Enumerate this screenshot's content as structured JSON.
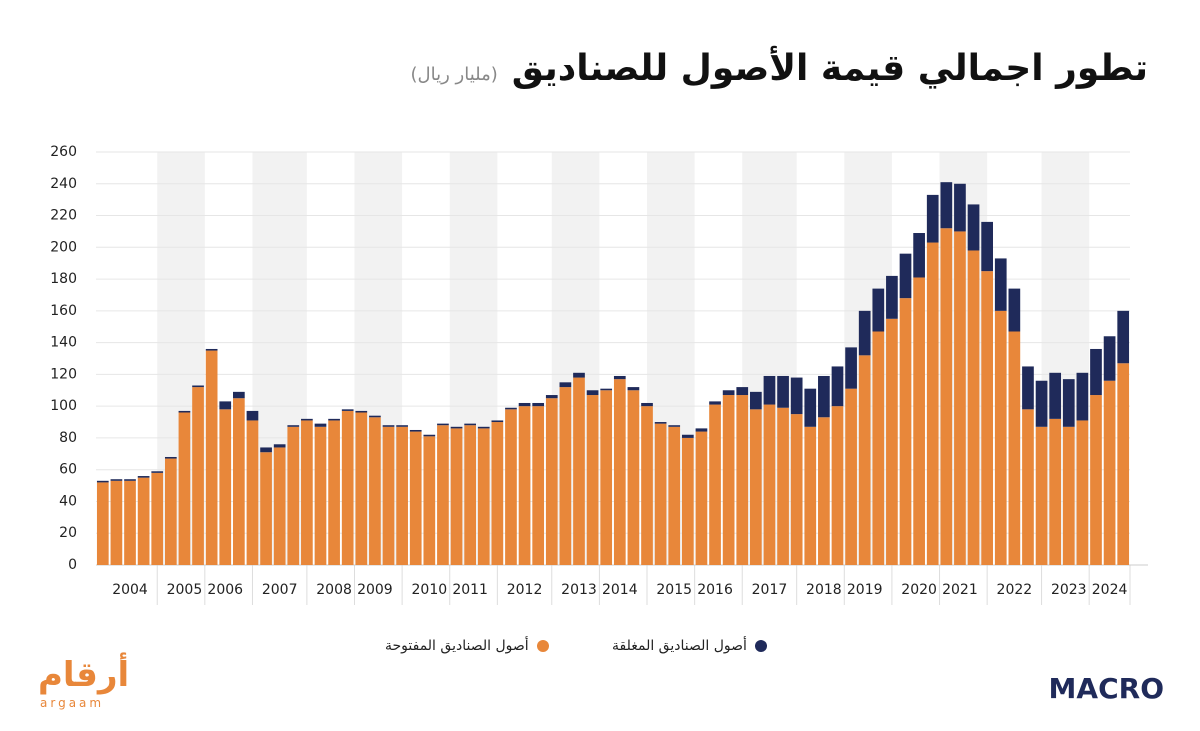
{
  "chart_data": {
    "type": "stacked_bar",
    "title": "تطور اجمالي قيمة الأصول للصناديق",
    "subtitle": "(مليار ريال)",
    "categories": [
      null,
      null,
      "2004",
      null,
      null,
      null,
      "2005",
      null,
      null,
      "2006",
      null,
      null,
      null,
      "2007",
      null,
      null,
      null,
      "2008",
      null,
      null,
      "2009",
      null,
      null,
      null,
      "2010",
      null,
      null,
      "2011",
      null,
      null,
      null,
      "2012",
      null,
      null,
      null,
      "2013",
      null,
      null,
      "2014",
      null,
      null,
      null,
      "2015",
      null,
      null,
      "2016",
      null,
      null,
      null,
      "2017",
      null,
      null,
      null,
      "2018",
      null,
      null,
      "2019",
      null,
      null,
      null,
      "2020",
      null,
      null,
      "2021",
      null,
      null,
      null,
      "2022",
      null,
      null,
      null,
      "2023",
      null,
      null,
      "2024",
      null
    ],
    "series": [
      {
        "name": "أصول الصناديق المفتوحة",
        "color": "#e8873a",
        "values": [
          52,
          53,
          53,
          55,
          58,
          67,
          96,
          112,
          135,
          98,
          105,
          91,
          71,
          74,
          87,
          91,
          87,
          91,
          97,
          96,
          93,
          87,
          87,
          84,
          81,
          88,
          86,
          88,
          86,
          90,
          98,
          100,
          100,
          105,
          112,
          118,
          107,
          110,
          117,
          110,
          100,
          89,
          87,
          80,
          84,
          101,
          107,
          107,
          98,
          101,
          99,
          95,
          87,
          93,
          100,
          111,
          132,
          147,
          155,
          168,
          181,
          203,
          212,
          210,
          198,
          185,
          160,
          147,
          98,
          87,
          92,
          87,
          91,
          107,
          116,
          127
        ]
      },
      {
        "name": "أصول الصناديق المغلقة",
        "color": "#1f2a5a",
        "values": [
          1,
          1,
          1,
          1,
          1,
          1,
          1,
          1,
          1,
          5,
          4,
          6,
          3,
          2,
          1,
          1,
          2,
          1,
          1,
          1,
          1,
          1,
          1,
          1,
          1,
          1,
          1,
          1,
          1,
          1,
          1,
          2,
          2,
          2,
          3,
          3,
          3,
          1,
          2,
          2,
          2,
          1,
          1,
          2,
          2,
          2,
          3,
          5,
          11,
          18,
          20,
          23,
          24,
          26,
          25,
          26,
          28,
          27,
          27,
          28,
          28,
          30,
          29,
          30,
          29,
          31,
          33,
          27,
          27,
          29,
          29,
          30,
          30,
          29,
          28,
          33
        ]
      }
    ],
    "ylim": [
      0,
      260
    ],
    "yticks": [
      0,
      20,
      40,
      60,
      80,
      100,
      120,
      140,
      160,
      180,
      200,
      220,
      240,
      260
    ],
    "grid": true,
    "logos": {
      "left": "أرقام",
      "left_sub": "argaam",
      "right": "MACRO"
    }
  }
}
